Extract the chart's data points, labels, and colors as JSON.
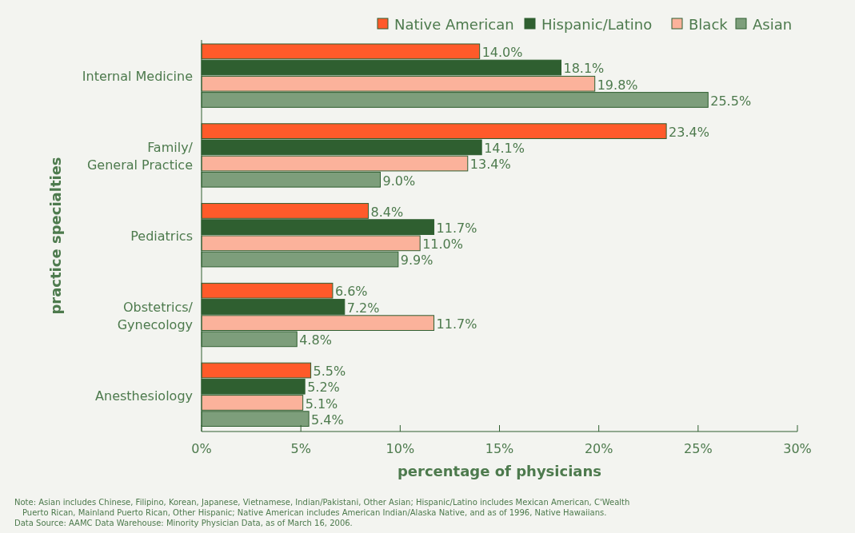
{
  "chart_data": {
    "type": "bar",
    "orientation": "horizontal",
    "xlabel": "percentage of physicians",
    "ylabel": "practice specialties",
    "categories": [
      "Internal Medicine",
      "Family/\nGeneral Practice",
      "Pediatrics",
      "Obstetrics/\nGynecology",
      "Anesthesiology"
    ],
    "series": [
      {
        "name": "Native American",
        "color": "#ff5a2a",
        "values": [
          14.0,
          23.4,
          8.4,
          6.6,
          5.5
        ],
        "value_labels": [
          "14.0%",
          "23.4%",
          "8.4%",
          "6.6%",
          "5.5%"
        ]
      },
      {
        "name": "Hispanic/Latino",
        "color": "#2f5f30",
        "values": [
          18.1,
          14.1,
          11.7,
          7.2,
          5.2
        ],
        "value_labels": [
          "18.1%",
          "14.1%",
          "11.7%",
          "7.2%",
          "5.2%"
        ]
      },
      {
        "name": "Black",
        "color": "#fbb29b",
        "values": [
          19.8,
          13.4,
          11.0,
          11.7,
          5.1
        ],
        "value_labels": [
          "19.8%",
          "13.4%",
          "11.0%",
          "11.7%",
          "5.1%"
        ]
      },
      {
        "name": "Asian",
        "color": "#7d9e7b",
        "values": [
          25.5,
          9.0,
          9.9,
          4.8,
          5.4
        ],
        "value_labels": [
          "25.5%",
          "9.0%",
          "9.9%",
          "4.8%",
          "5.4%"
        ]
      }
    ],
    "xlim": [
      0,
      30
    ],
    "xticks": [
      {
        "value": 0,
        "label": "0%"
      },
      {
        "value": 5,
        "label": "5%"
      },
      {
        "value": 10,
        "label": "10%"
      },
      {
        "value": 15,
        "label": "15%"
      },
      {
        "value": 20,
        "label": "20%"
      },
      {
        "value": 25,
        "label": "25%"
      },
      {
        "value": 30,
        "label": "30%"
      }
    ],
    "legend": "top right",
    "grid": false,
    "annotations": [
      "Note: Asian includes Chinese, Filipino, Korean, Japanese, Vietnamese, Indian/Pakistani, Other Asian; Hispanic/Latino includes Mexican American, C'Wealth",
      "Puerto Rican, Mainland Puerto Rican, Other Hispanic; Native American includes American Indian/Alaska Native, and as of 1996, Native Hawaiians.",
      "Data Source: AAMC Data Warehouse: Minority Physician Data, as of March 16, 2006."
    ]
  }
}
